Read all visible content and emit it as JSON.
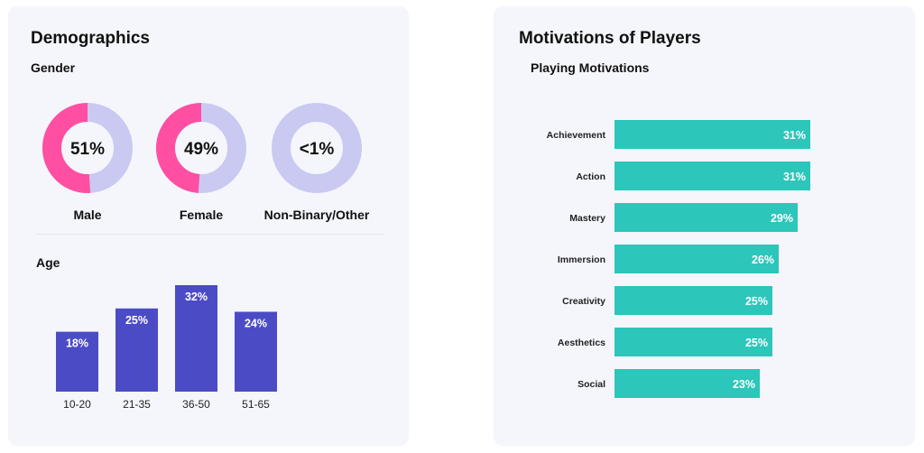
{
  "demographics": {
    "title": "Demographics",
    "gender": {
      "title": "Gender",
      "chart_data": {
        "type": "pie",
        "colors": {
          "filled": "#ff4fa3",
          "remainder": "#c9c9f2"
        },
        "items": [
          {
            "label": "Male",
            "display": "51%",
            "value": 51
          },
          {
            "label": "Female",
            "display": "49%",
            "value": 49
          },
          {
            "label": "Non-Binary/Other",
            "display": "<1%",
            "value": 0
          }
        ]
      }
    },
    "age": {
      "title": "Age",
      "chart_data": {
        "type": "bar",
        "categories": [
          "10-20",
          "21-35",
          "36-50",
          "51-65"
        ],
        "values": [
          18,
          25,
          32,
          24
        ],
        "value_labels": [
          "18%",
          "25%",
          "32%",
          "24%"
        ],
        "ylim": [
          0,
          32
        ],
        "color": "#4c4bc6"
      }
    }
  },
  "motivations": {
    "title": "Motivations of Players",
    "subtitle": "Playing Motivations",
    "chart_data": {
      "type": "bar",
      "orientation": "horizontal",
      "categories": [
        "Achievement",
        "Action",
        "Mastery",
        "Immersion",
        "Creativity",
        "Aesthetics",
        "Social"
      ],
      "values": [
        31,
        31,
        29,
        26,
        25,
        25,
        23
      ],
      "value_labels": [
        "31%",
        "31%",
        "29%",
        "26%",
        "25%",
        "25%",
        "23%"
      ],
      "xlim": [
        0,
        31
      ],
      "color": "#2cc6ba"
    }
  }
}
